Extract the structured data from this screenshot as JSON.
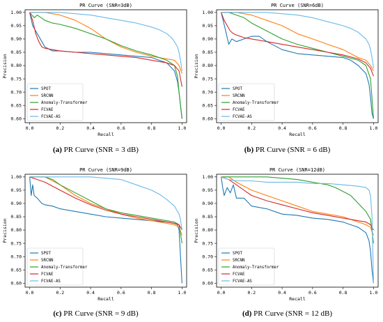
{
  "chart_data": [
    {
      "type": "line",
      "title": "PR Curve (SNR=3dB)",
      "xlabel": "Recall",
      "ylabel": "Precision",
      "xlim": [
        -0.03,
        1.03
      ],
      "ylim": [
        0.585,
        1.01
      ],
      "xticks": [
        "0.0",
        "0.2",
        "0.4",
        "0.6",
        "0.8",
        "1.0"
      ],
      "yticks": [
        "0.60",
        "0.65",
        "0.70",
        "0.75",
        "0.80",
        "0.85",
        "0.90",
        "0.95",
        "1.00"
      ],
      "legend": "lower-left",
      "caption_letter": "(a)",
      "caption_text": "PR Curve (SNR = 3 dB)",
      "series": [
        {
          "name": "SPOT",
          "color": "#1f77b4",
          "x": [
            0.0,
            0.02,
            0.05,
            0.08,
            0.1,
            0.15,
            0.2,
            0.3,
            0.4,
            0.5,
            0.6,
            0.7,
            0.8,
            0.85,
            0.9,
            0.95,
            0.97,
            0.98,
            0.99,
            1.0
          ],
          "y": [
            1.0,
            0.95,
            0.92,
            0.89,
            0.87,
            0.855,
            0.855,
            0.85,
            0.85,
            0.845,
            0.84,
            0.835,
            0.83,
            0.82,
            0.81,
            0.78,
            0.74,
            0.7,
            0.65,
            0.6
          ]
        },
        {
          "name": "SRCNN",
          "color": "#ff7f0e",
          "x": [
            0.0,
            0.05,
            0.1,
            0.2,
            0.3,
            0.4,
            0.5,
            0.6,
            0.7,
            0.8,
            0.9,
            0.95,
            0.98,
            1.0
          ],
          "y": [
            1.0,
            1.0,
            1.0,
            0.99,
            0.97,
            0.94,
            0.9,
            0.87,
            0.85,
            0.835,
            0.825,
            0.82,
            0.8,
            0.77
          ]
        },
        {
          "name": "Anomaly-Transformer",
          "color": "#2ca02c",
          "x": [
            0.0,
            0.03,
            0.05,
            0.1,
            0.15,
            0.2,
            0.3,
            0.4,
            0.5,
            0.6,
            0.7,
            0.8,
            0.9,
            0.95,
            0.97,
            0.98,
            0.99,
            1.0
          ],
          "y": [
            1.0,
            0.98,
            0.99,
            0.97,
            0.96,
            0.955,
            0.94,
            0.92,
            0.9,
            0.875,
            0.855,
            0.84,
            0.82,
            0.8,
            0.76,
            0.7,
            0.65,
            0.6
          ]
        },
        {
          "name": "FCVAE",
          "color": "#d62728",
          "x": [
            0.0,
            0.02,
            0.04,
            0.06,
            0.08,
            0.1,
            0.15,
            0.2,
            0.3,
            0.4,
            0.5,
            0.6,
            0.7,
            0.8,
            0.9,
            0.95,
            0.98,
            1.0
          ],
          "y": [
            1.0,
            0.97,
            0.92,
            0.89,
            0.87,
            0.865,
            0.86,
            0.855,
            0.85,
            0.845,
            0.84,
            0.835,
            0.83,
            0.82,
            0.81,
            0.8,
            0.78,
            0.72
          ]
        },
        {
          "name": "FCVAE-AS",
          "color": "#6ab8e8",
          "x": [
            0.0,
            0.05,
            0.1,
            0.2,
            0.3,
            0.4,
            0.5,
            0.6,
            0.7,
            0.8,
            0.85,
            0.9,
            0.93,
            0.95,
            0.97,
            0.98,
            0.99,
            1.0
          ],
          "y": [
            1.0,
            1.0,
            1.0,
            1.0,
            0.995,
            0.99,
            0.98,
            0.97,
            0.96,
            0.945,
            0.935,
            0.92,
            0.905,
            0.89,
            0.87,
            0.85,
            0.82,
            0.78
          ]
        }
      ]
    },
    {
      "type": "line",
      "title": "PR Curve (SNR=6dB)",
      "xlabel": "Recall",
      "ylabel": "Precision",
      "xlim": [
        -0.03,
        1.03
      ],
      "ylim": [
        0.585,
        1.01
      ],
      "xticks": [
        "0.0",
        "0.2",
        "0.4",
        "0.6",
        "0.8",
        "1.0"
      ],
      "yticks": [
        "0.60",
        "0.65",
        "0.70",
        "0.75",
        "0.80",
        "0.85",
        "0.90",
        "0.95",
        "1.00"
      ],
      "legend": "lower-left",
      "caption_letter": "(b)",
      "caption_text": "PR Curve (SNR = 6 dB)",
      "series": [
        {
          "name": "SPOT",
          "color": "#1f77b4",
          "x": [
            0.0,
            0.03,
            0.05,
            0.07,
            0.1,
            0.15,
            0.2,
            0.25,
            0.3,
            0.4,
            0.5,
            0.6,
            0.7,
            0.8,
            0.85,
            0.9,
            0.95,
            0.97,
            0.98,
            0.99,
            1.0
          ],
          "y": [
            1.0,
            0.93,
            0.88,
            0.9,
            0.89,
            0.9,
            0.91,
            0.91,
            0.89,
            0.86,
            0.845,
            0.84,
            0.835,
            0.83,
            0.82,
            0.8,
            0.77,
            0.73,
            0.68,
            0.62,
            0.6
          ]
        },
        {
          "name": "SRCNN",
          "color": "#ff7f0e",
          "x": [
            0.0,
            0.05,
            0.1,
            0.2,
            0.3,
            0.4,
            0.5,
            0.6,
            0.7,
            0.8,
            0.9,
            0.95,
            0.98,
            1.0
          ],
          "y": [
            1.0,
            1.0,
            1.0,
            0.99,
            0.97,
            0.95,
            0.92,
            0.9,
            0.88,
            0.86,
            0.83,
            0.82,
            0.8,
            0.78
          ]
        },
        {
          "name": "Anomaly-Transformer",
          "color": "#2ca02c",
          "x": [
            0.0,
            0.05,
            0.1,
            0.15,
            0.2,
            0.3,
            0.4,
            0.5,
            0.6,
            0.7,
            0.8,
            0.9,
            0.95,
            0.98,
            1.0
          ],
          "y": [
            1.0,
            1.0,
            0.99,
            0.98,
            0.96,
            0.93,
            0.9,
            0.88,
            0.865,
            0.85,
            0.835,
            0.82,
            0.8,
            0.75,
            0.6
          ]
        },
        {
          "name": "FCVAE",
          "color": "#d62728",
          "x": [
            0.0,
            0.02,
            0.04,
            0.06,
            0.08,
            0.1,
            0.15,
            0.2,
            0.3,
            0.4,
            0.5,
            0.6,
            0.7,
            0.8,
            0.9,
            0.95,
            0.98,
            1.0
          ],
          "y": [
            1.0,
            0.97,
            0.95,
            0.93,
            0.92,
            0.915,
            0.905,
            0.9,
            0.89,
            0.88,
            0.87,
            0.86,
            0.85,
            0.84,
            0.825,
            0.81,
            0.79,
            0.76
          ]
        },
        {
          "name": "FCVAE-AS",
          "color": "#6ab8e8",
          "x": [
            0.0,
            0.05,
            0.1,
            0.2,
            0.3,
            0.4,
            0.5,
            0.6,
            0.7,
            0.8,
            0.85,
            0.9,
            0.93,
            0.95,
            0.97,
            0.98,
            0.99,
            1.0
          ],
          "y": [
            1.0,
            1.0,
            1.0,
            1.0,
            1.0,
            0.995,
            0.99,
            0.98,
            0.965,
            0.95,
            0.94,
            0.925,
            0.91,
            0.9,
            0.88,
            0.86,
            0.83,
            0.79
          ]
        }
      ]
    },
    {
      "type": "line",
      "title": "PR Curve (SNR=9dB)",
      "xlabel": "Recall",
      "ylabel": "Precision",
      "xlim": [
        -0.03,
        1.03
      ],
      "ylim": [
        0.585,
        1.01
      ],
      "xticks": [
        "0.0",
        "0.2",
        "0.4",
        "0.6",
        "0.8",
        "1.0"
      ],
      "yticks": [
        "0.60",
        "0.65",
        "0.70",
        "0.75",
        "0.80",
        "0.85",
        "0.90",
        "0.95",
        "1.00"
      ],
      "legend": "lower-left",
      "caption_letter": "(c)",
      "caption_text": "PR Curve (SNR = 9 dB)",
      "series": [
        {
          "name": "SPOT",
          "color": "#1f77b4",
          "x": [
            0.0,
            0.01,
            0.02,
            0.03,
            0.05,
            0.08,
            0.1,
            0.15,
            0.2,
            0.3,
            0.4,
            0.5,
            0.6,
            0.7,
            0.8,
            0.9,
            0.95,
            0.97,
            0.98,
            0.99,
            1.0
          ],
          "y": [
            1.0,
            0.93,
            0.97,
            0.93,
            0.92,
            0.9,
            0.895,
            0.89,
            0.88,
            0.87,
            0.86,
            0.85,
            0.845,
            0.84,
            0.835,
            0.83,
            0.825,
            0.82,
            0.8,
            0.7,
            0.6
          ]
        },
        {
          "name": "SRCNN",
          "color": "#ff7f0e",
          "x": [
            0.0,
            0.05,
            0.1,
            0.2,
            0.3,
            0.4,
            0.5,
            0.6,
            0.7,
            0.8,
            0.9,
            0.95,
            0.98,
            1.0
          ],
          "y": [
            1.0,
            1.0,
            1.0,
            0.97,
            0.93,
            0.9,
            0.88,
            0.86,
            0.845,
            0.835,
            0.825,
            0.82,
            0.81,
            0.78
          ]
        },
        {
          "name": "Anomaly-Transformer",
          "color": "#2ca02c",
          "x": [
            0.0,
            0.05,
            0.1,
            0.15,
            0.2,
            0.3,
            0.4,
            0.5,
            0.6,
            0.7,
            0.8,
            0.9,
            0.95,
            0.98,
            1.0
          ],
          "y": [
            1.0,
            1.0,
            1.0,
            0.99,
            0.97,
            0.94,
            0.91,
            0.88,
            0.865,
            0.855,
            0.845,
            0.835,
            0.83,
            0.82,
            0.75
          ]
        },
        {
          "name": "FCVAE",
          "color": "#d62728",
          "x": [
            0.0,
            0.05,
            0.1,
            0.2,
            0.3,
            0.4,
            0.5,
            0.6,
            0.7,
            0.8,
            0.9,
            0.95,
            0.98,
            1.0
          ],
          "y": [
            1.0,
            0.99,
            0.98,
            0.95,
            0.92,
            0.895,
            0.875,
            0.86,
            0.85,
            0.84,
            0.83,
            0.825,
            0.82,
            0.8
          ]
        },
        {
          "name": "FCVAE-AS",
          "color": "#6ab8e8",
          "x": [
            0.0,
            0.1,
            0.2,
            0.3,
            0.4,
            0.5,
            0.6,
            0.7,
            0.8,
            0.85,
            0.9,
            0.93,
            0.95,
            0.97,
            0.98,
            0.99,
            1.0
          ],
          "y": [
            1.0,
            1.0,
            1.0,
            1.0,
            1.0,
            0.995,
            0.99,
            0.97,
            0.95,
            0.935,
            0.915,
            0.9,
            0.89,
            0.87,
            0.86,
            0.84,
            0.8
          ]
        }
      ]
    },
    {
      "type": "line",
      "title": "PR Curve (SNR=12dB)",
      "xlabel": "Recall",
      "ylabel": "Precision",
      "xlim": [
        -0.03,
        1.03
      ],
      "ylim": [
        0.585,
        1.01
      ],
      "xticks": [
        "0.0",
        "0.2",
        "0.4",
        "0.6",
        "0.8",
        "1.0"
      ],
      "yticks": [
        "0.60",
        "0.65",
        "0.70",
        "0.75",
        "0.80",
        "0.85",
        "0.90",
        "0.95",
        "1.00"
      ],
      "legend": "lower-left",
      "caption_letter": "(d)",
      "caption_text": "PR Curve (SNR = 12 dB)",
      "series": [
        {
          "name": "SPOT",
          "color": "#1f77b4",
          "x": [
            0.0,
            0.01,
            0.02,
            0.04,
            0.06,
            0.08,
            0.1,
            0.15,
            0.2,
            0.3,
            0.4,
            0.5,
            0.6,
            0.7,
            0.8,
            0.9,
            0.95,
            0.97,
            0.98,
            0.99,
            1.0
          ],
          "y": [
            1.0,
            0.96,
            0.93,
            0.96,
            0.94,
            0.97,
            0.92,
            0.92,
            0.89,
            0.88,
            0.86,
            0.855,
            0.845,
            0.84,
            0.83,
            0.81,
            0.79,
            0.76,
            0.72,
            0.65,
            0.6
          ]
        },
        {
          "name": "SRCNN",
          "color": "#ff7f0e",
          "x": [
            0.0,
            0.05,
            0.1,
            0.2,
            0.3,
            0.4,
            0.5,
            0.6,
            0.7,
            0.8,
            0.9,
            0.95,
            0.98,
            1.0
          ],
          "y": [
            1.0,
            1.0,
            0.98,
            0.95,
            0.93,
            0.91,
            0.89,
            0.87,
            0.86,
            0.85,
            0.83,
            0.82,
            0.81,
            0.78
          ]
        },
        {
          "name": "Anomaly-Transformer",
          "color": "#2ca02c",
          "x": [
            0.0,
            0.1,
            0.2,
            0.3,
            0.4,
            0.5,
            0.6,
            0.7,
            0.75,
            0.8,
            0.85,
            0.9,
            0.95,
            0.98,
            1.0
          ],
          "y": [
            1.0,
            1.0,
            1.0,
            1.0,
            0.995,
            0.99,
            0.98,
            0.97,
            0.96,
            0.945,
            0.93,
            0.9,
            0.87,
            0.84,
            0.75
          ]
        },
        {
          "name": "FCVAE",
          "color": "#d62728",
          "x": [
            0.0,
            0.05,
            0.1,
            0.15,
            0.2,
            0.3,
            0.4,
            0.5,
            0.6,
            0.7,
            0.8,
            0.9,
            0.95,
            0.98,
            1.0
          ],
          "y": [
            1.0,
            0.99,
            0.97,
            0.95,
            0.93,
            0.91,
            0.895,
            0.88,
            0.865,
            0.855,
            0.845,
            0.835,
            0.83,
            0.82,
            0.8
          ]
        },
        {
          "name": "FCVAE-AS",
          "color": "#6ab8e8",
          "x": [
            0.0,
            0.05,
            0.1,
            0.2,
            0.3,
            0.4,
            0.5,
            0.6,
            0.7,
            0.8,
            0.9,
            0.95,
            0.97,
            0.98,
            0.99,
            1.0
          ],
          "y": [
            1.0,
            0.99,
            0.985,
            0.985,
            0.98,
            0.98,
            0.98,
            0.975,
            0.975,
            0.97,
            0.965,
            0.96,
            0.95,
            0.93,
            0.85,
            0.6
          ]
        }
      ]
    }
  ]
}
